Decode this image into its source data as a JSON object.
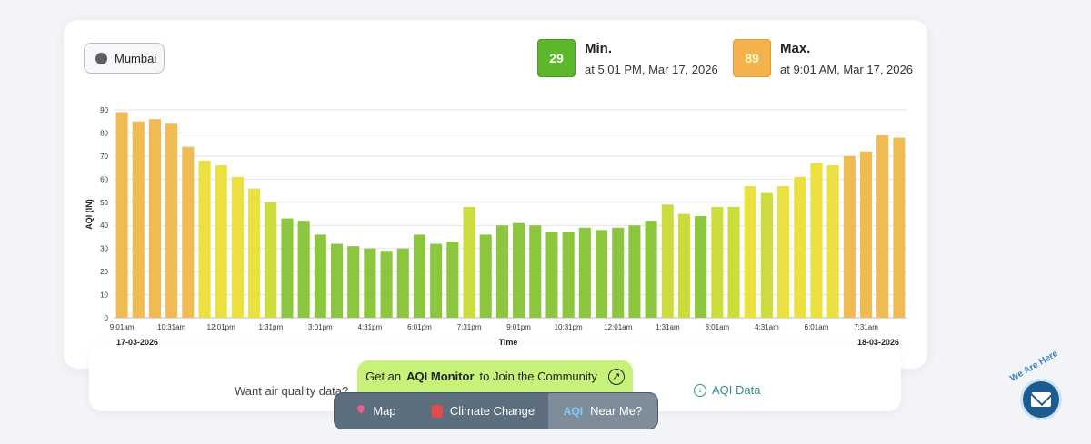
{
  "location": {
    "city": "Mumbai"
  },
  "min_stat": {
    "value": "29",
    "label": "Min.",
    "time": "at 5:01 PM, Mar 17, 2026"
  },
  "max_stat": {
    "value": "89",
    "label": "Max.",
    "time": "at 9:01 AM, Mar 17, 2026"
  },
  "chart_data": {
    "type": "bar",
    "ylabel": "AQI (IN)",
    "xlabel": "Time",
    "ylim": [
      0,
      90
    ],
    "yticks": [
      0,
      10,
      20,
      30,
      40,
      50,
      60,
      70,
      80,
      90
    ],
    "grid": true,
    "legend": "none",
    "start_date_label": "17-03-2026",
    "end_date_label": "18-03-2026",
    "x_tick_labels": [
      "9:01am",
      "10:31am",
      "12:01pm",
      "1:31pm",
      "3:01pm",
      "4:31pm",
      "6:01pm",
      "7:31pm",
      "9:01pm",
      "10:31pm",
      "12:01am",
      "1:31am",
      "3:01am",
      "4:31am",
      "6:01am",
      "7:31am"
    ],
    "categories": [
      "9:01am",
      "9:31am",
      "10:01am",
      "10:31am",
      "11:01am",
      "11:31am",
      "12:01pm",
      "12:31pm",
      "1:01pm",
      "1:31pm",
      "2:01pm",
      "2:31pm",
      "3:01pm",
      "3:31pm",
      "4:01pm",
      "4:31pm",
      "5:01pm",
      "5:31pm",
      "6:01pm",
      "6:31pm",
      "7:01pm",
      "7:31pm",
      "8:01pm",
      "8:31pm",
      "9:01pm",
      "9:31pm",
      "10:01pm",
      "10:31pm",
      "11:01pm",
      "11:31pm",
      "12:01am",
      "12:31am",
      "1:01am",
      "1:31am",
      "2:01am",
      "2:31am",
      "3:01am",
      "3:31am",
      "4:01am",
      "4:31am",
      "5:01am",
      "5:31am",
      "6:01am",
      "6:31am",
      "7:01am",
      "7:31am",
      "8:01am",
      "8:31am"
    ],
    "values": [
      89,
      85,
      86,
      84,
      74,
      68,
      66,
      61,
      56,
      50,
      43,
      42,
      36,
      32,
      31,
      30,
      29,
      30,
      36,
      32,
      33,
      48,
      36,
      40,
      41,
      40,
      37,
      37,
      39,
      38,
      39,
      40,
      42,
      49,
      45,
      44,
      48,
      48,
      57,
      54,
      57,
      61,
      67,
      66,
      70,
      72,
      79,
      78
    ]
  },
  "colors": {
    "good": "#8cc63f",
    "moderate": "#e9e03d",
    "poor": "#f0b94a"
  },
  "footer": {
    "want_data": "Want air quality data?",
    "aqi_data_link": "AQI Data",
    "cta_prefix": "Get an",
    "cta_bold": "AQI Monitor",
    "cta_suffix": "to Join the Community"
  },
  "nav": {
    "map": "Map",
    "climate": "Climate Change",
    "near": "Near Me?"
  },
  "contact": {
    "label": "We Are Here"
  }
}
